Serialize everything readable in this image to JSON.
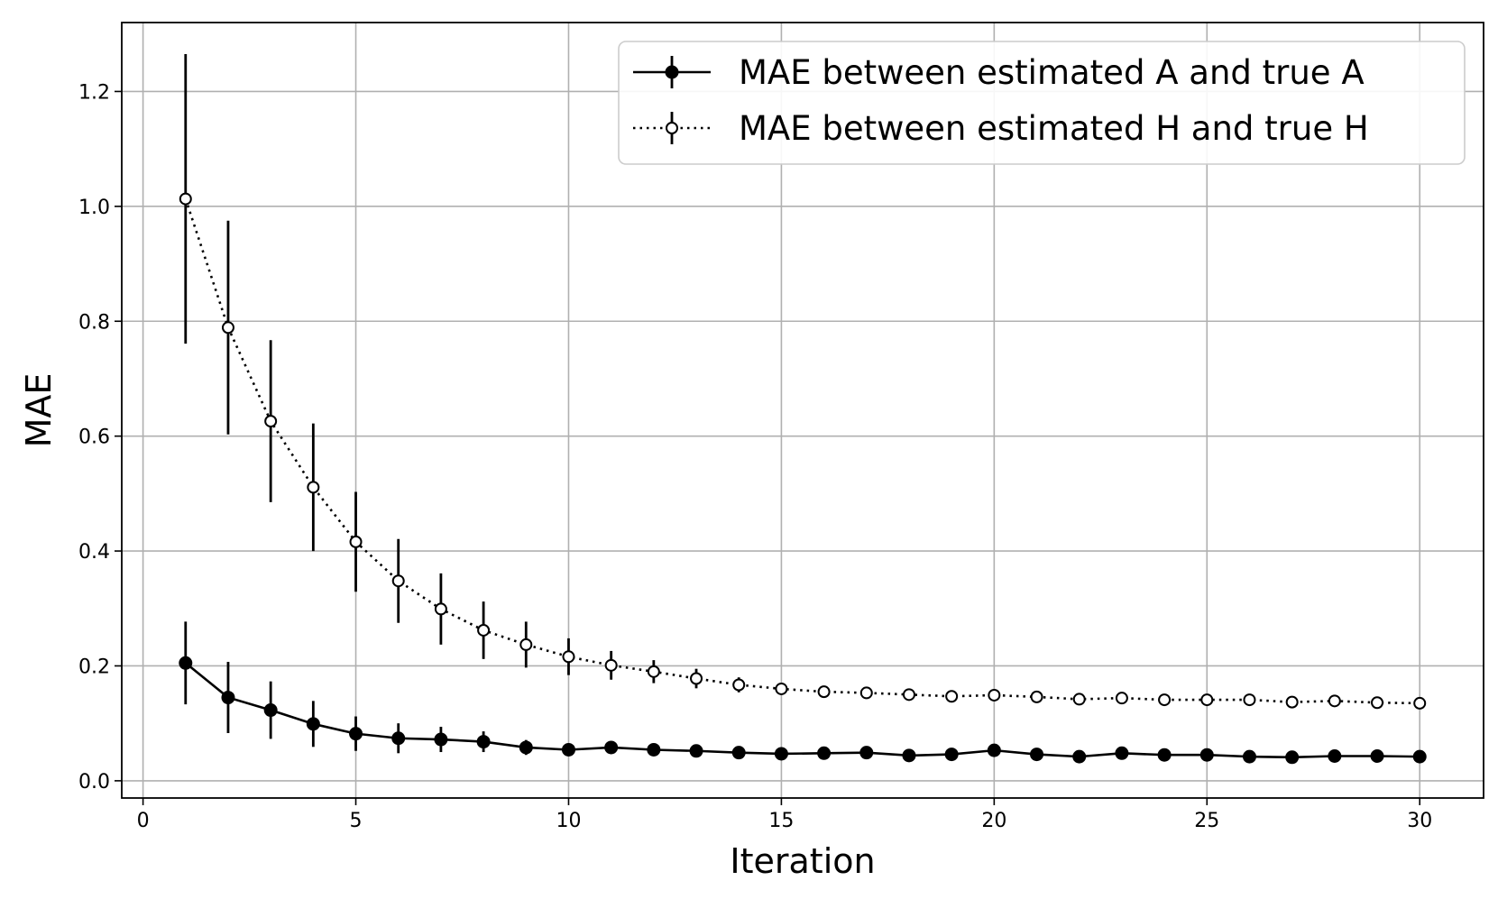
{
  "chart_data": {
    "type": "line",
    "title": "",
    "xlabel": "Iteration",
    "ylabel": "MAE",
    "xlim": [
      -0.5,
      31.5
    ],
    "ylim": [
      -0.03,
      1.32
    ],
    "xticks": [
      0,
      5,
      10,
      15,
      20,
      25,
      30
    ],
    "yticks": [
      0.0,
      0.2,
      0.4,
      0.6,
      0.8,
      1.0,
      1.2
    ],
    "xtick_labels": [
      "0",
      "5",
      "10",
      "15",
      "20",
      "25",
      "30"
    ],
    "ytick_labels": [
      "0.0",
      "0.2",
      "0.4",
      "0.6",
      "0.8",
      "1.0",
      "1.2"
    ],
    "grid": true,
    "legend_position": "top-right",
    "x": [
      1,
      2,
      3,
      4,
      5,
      6,
      7,
      8,
      9,
      10,
      11,
      12,
      13,
      14,
      15,
      16,
      17,
      18,
      19,
      20,
      21,
      22,
      23,
      24,
      25,
      26,
      27,
      28,
      29,
      30
    ],
    "series": [
      {
        "name": "MAE between estimated A and true A",
        "line_style": "solid",
        "marker": "filled-circle",
        "color": "#000000",
        "values": [
          0.205,
          0.145,
          0.123,
          0.099,
          0.082,
          0.074,
          0.072,
          0.068,
          0.058,
          0.054,
          0.058,
          0.054,
          0.052,
          0.049,
          0.047,
          0.048,
          0.049,
          0.044,
          0.046,
          0.053,
          0.046,
          0.042,
          0.048,
          0.045,
          0.045,
          0.042,
          0.041,
          0.043,
          0.043,
          0.042
        ],
        "error": [
          0.072,
          0.062,
          0.05,
          0.04,
          0.03,
          0.026,
          0.022,
          0.018,
          0.013,
          0.008,
          0.008,
          0.006,
          0.006,
          0.005,
          0.005,
          0.005,
          0.005,
          0.004,
          0.004,
          0.006,
          0.004,
          0.004,
          0.005,
          0.004,
          0.004,
          0.004,
          0.004,
          0.004,
          0.004,
          0.004
        ]
      },
      {
        "name": "MAE between estimated H and true H",
        "line_style": "dotted",
        "marker": "open-circle",
        "color": "#000000",
        "values": [
          1.013,
          0.789,
          0.626,
          0.511,
          0.416,
          0.348,
          0.299,
          0.262,
          0.237,
          0.216,
          0.201,
          0.19,
          0.178,
          0.167,
          0.16,
          0.155,
          0.153,
          0.15,
          0.147,
          0.149,
          0.146,
          0.142,
          0.144,
          0.141,
          0.141,
          0.141,
          0.137,
          0.139,
          0.136,
          0.135
        ],
        "error": [
          0.252,
          0.186,
          0.141,
          0.111,
          0.087,
          0.073,
          0.062,
          0.05,
          0.04,
          0.032,
          0.025,
          0.02,
          0.017,
          0.013,
          0.01,
          0.009,
          0.008,
          0.008,
          0.008,
          0.008,
          0.008,
          0.007,
          0.008,
          0.007,
          0.007,
          0.007,
          0.006,
          0.006,
          0.006,
          0.006
        ]
      }
    ]
  }
}
